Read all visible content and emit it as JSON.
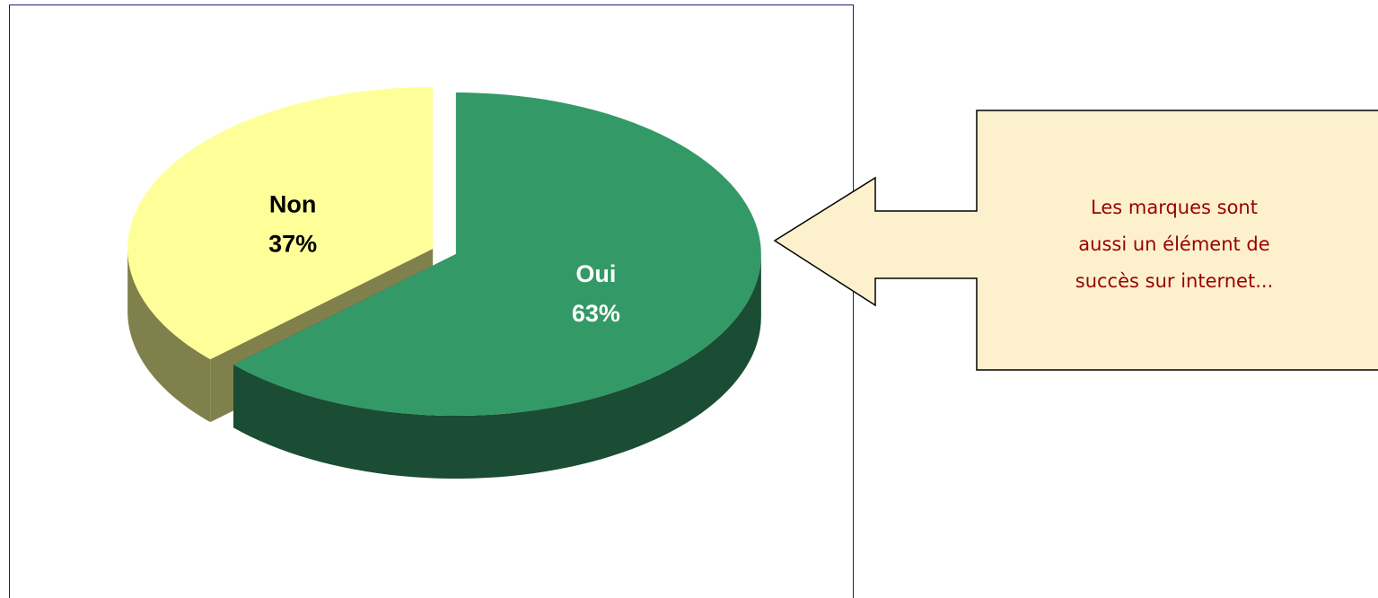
{
  "chart_data": {
    "type": "pie",
    "categories": [
      "Oui",
      "Non"
    ],
    "values": [
      63,
      37
    ],
    "value_labels": [
      "63%",
      "37%"
    ],
    "colors": [
      "#339966",
      "#ffff99"
    ],
    "label_colors": [
      "#ffffff",
      "#000000"
    ],
    "annotation": [
      "Les marques sont",
      "aussi un élément de",
      "succès sur internet..."
    ]
  }
}
